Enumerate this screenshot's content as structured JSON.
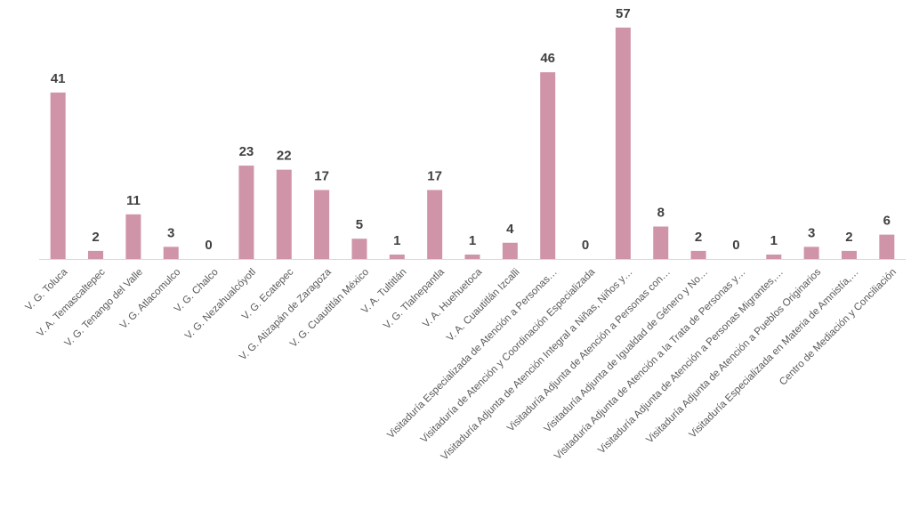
{
  "chart_data": {
    "type": "bar",
    "categories": [
      "V. G. Toluca",
      "V. A. Temascaltepec",
      "V. G. Tenango del Valle",
      "V. G. Atlacomulco",
      "V. G. Chalco",
      "V. G. Nezahualcóyotl",
      "V. G. Ecatepec",
      "V. G. Atizapán de Zaragoza",
      "V. G. Cuautitlán México",
      "V. A. Tultitlán",
      "V. G. Tlalnepantla",
      "V. A. Huehuetoca",
      "V. A. Cuautitlán Izcalli",
      "Visitaduría Especializada de Atención a Personas…",
      "Visitaduría de Atención y Coordinación Especializada",
      "Visitaduría Adjunta de Atención Integral a Niñas, Niños y…",
      "Visitaduría Adjunta de Atención a Personas con…",
      "Visitaduría Adjunta de Igualdad de Género y No…",
      "Visitaduría Adjunta de Atención a la Trata de Personas y…",
      "Visitaduría Adjunta de Atención a Personas Migrantes,…",
      "Visitaduría Adjunta de Atención a Pueblos Originarios",
      "Visitaduría Especializada en Materia de Amnistía,…",
      "Centro de Mediación y Conciliación"
    ],
    "values": [
      41,
      2,
      11,
      3,
      0,
      23,
      22,
      17,
      5,
      1,
      17,
      1,
      4,
      46,
      0,
      57,
      8,
      2,
      0,
      1,
      3,
      2,
      6
    ],
    "title": "",
    "xlabel": "",
    "ylabel": "",
    "ylim": [
      0,
      57
    ],
    "grid": false,
    "legend": "none",
    "data_labels": true,
    "colors": {
      "bar": "#cf94a8",
      "axis": "#d9d9d9",
      "value_text": "#404040",
      "category_text": "#595959"
    }
  }
}
